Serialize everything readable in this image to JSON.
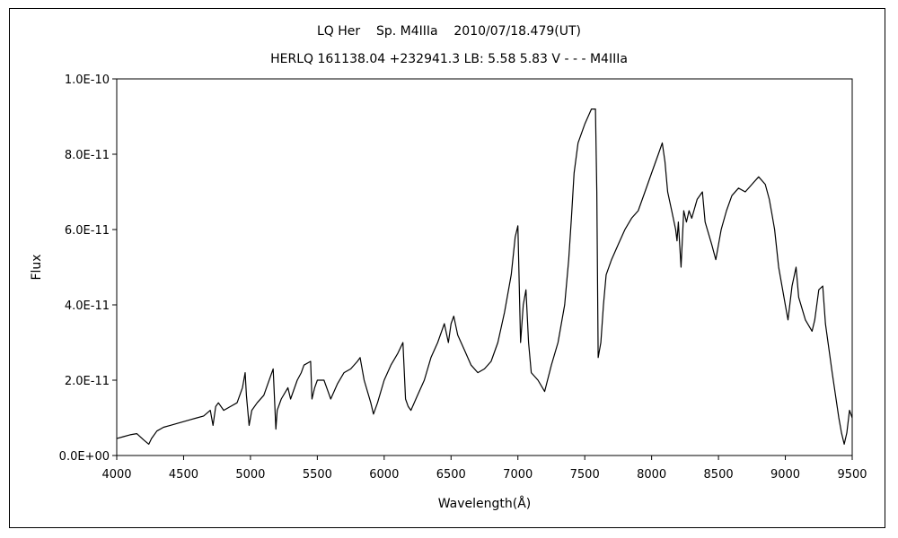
{
  "chart_data": {
    "type": "line",
    "title": "LQ Her    Sp. M4IIIa    2010/07/18.479(UT)",
    "subtitle": "HERLQ 161138.04 +232941.3 LB: 5.58 5.83 V - - - M4IIIa",
    "xlabel": "Wavelength(Å)",
    "ylabel": "Flux",
    "xlim": [
      4000,
      9500
    ],
    "ylim": [
      0,
      1e-10
    ],
    "x_ticks": [
      4000,
      4500,
      5000,
      5500,
      6000,
      6500,
      7000,
      7500,
      8000,
      8500,
      9000,
      9500
    ],
    "x_tick_labels": [
      "4000",
      "4500",
      "5000",
      "5500",
      "6000",
      "6500",
      "7000",
      "7500",
      "8000",
      "8500",
      "9000",
      "9500"
    ],
    "y_ticks": [
      0,
      2e-11,
      4e-11,
      6e-11,
      8e-11,
      1e-10
    ],
    "y_tick_labels": [
      "0.0E+00",
      "2.0E-11",
      "4.0E-11",
      "6.0E-11",
      "8.0E-11",
      "1.0E-10"
    ],
    "grid": false,
    "series_color": "#000000",
    "series": [
      {
        "x": [
          4000,
          4050,
          4100,
          4150,
          4200,
          4240,
          4260,
          4300,
          4350,
          4400,
          4450,
          4500,
          4550,
          4600,
          4650,
          4700,
          4720,
          4740,
          4760,
          4800,
          4850,
          4900,
          4940,
          4960,
          4970,
          4990,
          5010,
          5050,
          5100,
          5150,
          5170,
          5190,
          5200,
          5230,
          5280,
          5300,
          5350,
          5380,
          5400,
          5450,
          5460,
          5480,
          5500,
          5550,
          5580,
          5600,
          5650,
          5700,
          5750,
          5800,
          5820,
          5850,
          5900,
          5920,
          5950,
          6000,
          6050,
          6100,
          6140,
          6160,
          6180,
          6200,
          6250,
          6300,
          6350,
          6400,
          6450,
          6480,
          6500,
          6520,
          6550,
          6600,
          6650,
          6700,
          6750,
          6800,
          6850,
          6900,
          6950,
          6980,
          7000,
          7020,
          7040,
          7060,
          7080,
          7100,
          7150,
          7200,
          7250,
          7300,
          7350,
          7380,
          7400,
          7420,
          7450,
          7500,
          7550,
          7580,
          7590,
          7600,
          7620,
          7640,
          7660,
          7700,
          7750,
          7800,
          7850,
          7900,
          7950,
          8000,
          8050,
          8080,
          8100,
          8120,
          8150,
          8180,
          8190,
          8200,
          8220,
          8240,
          8260,
          8280,
          8300,
          8340,
          8380,
          8400,
          8450,
          8480,
          8500,
          8520,
          8560,
          8600,
          8650,
          8700,
          8750,
          8800,
          8850,
          8880,
          8900,
          8920,
          8950,
          9000,
          9020,
          9050,
          9080,
          9100,
          9150,
          9200,
          9220,
          9250,
          9280,
          9300,
          9350,
          9400,
          9420,
          9440,
          9460,
          9480,
          9500
        ],
        "y": [
          4.5e-12,
          5e-12,
          5.5e-12,
          5.8e-12,
          4.2e-12,
          3e-12,
          4.5e-12,
          6.5e-12,
          7.5e-12,
          8e-12,
          8.5e-12,
          9e-12,
          9.5e-12,
          1e-11,
          1.05e-11,
          1.2e-11,
          8e-12,
          1.3e-11,
          1.4e-11,
          1.2e-11,
          1.3e-11,
          1.4e-11,
          1.8e-11,
          2.2e-11,
          1.6e-11,
          8e-12,
          1.2e-11,
          1.4e-11,
          1.6e-11,
          2.1e-11,
          2.3e-11,
          7e-12,
          1.2e-11,
          1.5e-11,
          1.8e-11,
          1.5e-11,
          2e-11,
          2.2e-11,
          2.4e-11,
          2.5e-11,
          1.5e-11,
          1.8e-11,
          2e-11,
          2e-11,
          1.7e-11,
          1.5e-11,
          1.9e-11,
          2.2e-11,
          2.3e-11,
          2.5e-11,
          2.6e-11,
          2e-11,
          1.4e-11,
          1.1e-11,
          1.4e-11,
          2e-11,
          2.4e-11,
          2.7e-11,
          3e-11,
          1.5e-11,
          1.3e-11,
          1.2e-11,
          1.6e-11,
          2e-11,
          2.6e-11,
          3e-11,
          3.5e-11,
          3e-11,
          3.5e-11,
          3.7e-11,
          3.2e-11,
          2.8e-11,
          2.4e-11,
          2.2e-11,
          2.3e-11,
          2.5e-11,
          3e-11,
          3.8e-11,
          4.8e-11,
          5.8e-11,
          6.1e-11,
          3e-11,
          4e-11,
          4.4e-11,
          3e-11,
          2.2e-11,
          2e-11,
          1.7e-11,
          2.4e-11,
          3e-11,
          4e-11,
          5.2e-11,
          6.3e-11,
          7.5e-11,
          8.3e-11,
          8.8e-11,
          9.2e-11,
          9.2e-11,
          7e-11,
          2.6e-11,
          3e-11,
          4e-11,
          4.8e-11,
          5.2e-11,
          5.6e-11,
          6e-11,
          6.3e-11,
          6.5e-11,
          7e-11,
          7.5e-11,
          8e-11,
          8.3e-11,
          7.8e-11,
          7e-11,
          6.5e-11,
          6e-11,
          5.7e-11,
          6.2e-11,
          5e-11,
          6.5e-11,
          6.2e-11,
          6.5e-11,
          6.3e-11,
          6.8e-11,
          7e-11,
          6.2e-11,
          5.6e-11,
          5.2e-11,
          5.6e-11,
          6e-11,
          6.5e-11,
          6.9e-11,
          7.1e-11,
          7e-11,
          7.2e-11,
          7.4e-11,
          7.2e-11,
          6.8e-11,
          6.4e-11,
          6e-11,
          5e-11,
          4e-11,
          3.6e-11,
          4.5e-11,
          5e-11,
          4.2e-11,
          3.6e-11,
          3.3e-11,
          3.6e-11,
          4.4e-11,
          4.5e-11,
          3.5e-11,
          2.2e-11,
          1e-11,
          6e-12,
          3e-12,
          6e-12,
          1.2e-11,
          1e-11
        ]
      }
    ]
  }
}
